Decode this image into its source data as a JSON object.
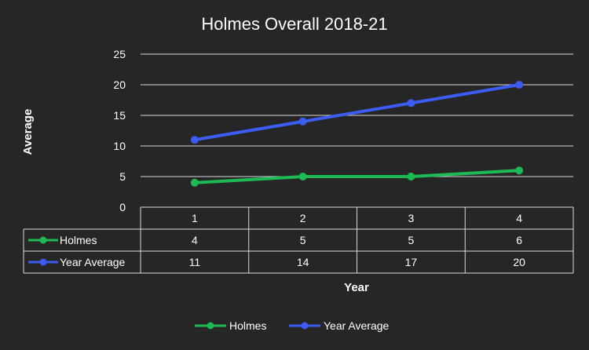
{
  "chart_data": {
    "type": "line",
    "title": "Holmes Overall 2018-21",
    "ylabel": "Average",
    "xlabel": "Year",
    "ylim": [
      0,
      25
    ],
    "yticks": [
      0,
      5,
      10,
      15,
      20,
      25
    ],
    "categories": [
      "1",
      "2",
      "3",
      "4"
    ],
    "grid": true,
    "legend": "bottom",
    "data_table": true,
    "series": [
      {
        "name": "Holmes",
        "values": [
          4,
          5,
          5,
          6
        ],
        "color": "#1db954"
      },
      {
        "name": "Year Average",
        "values": [
          11,
          14,
          17,
          20
        ],
        "color": "#3d5cf5"
      }
    ]
  }
}
